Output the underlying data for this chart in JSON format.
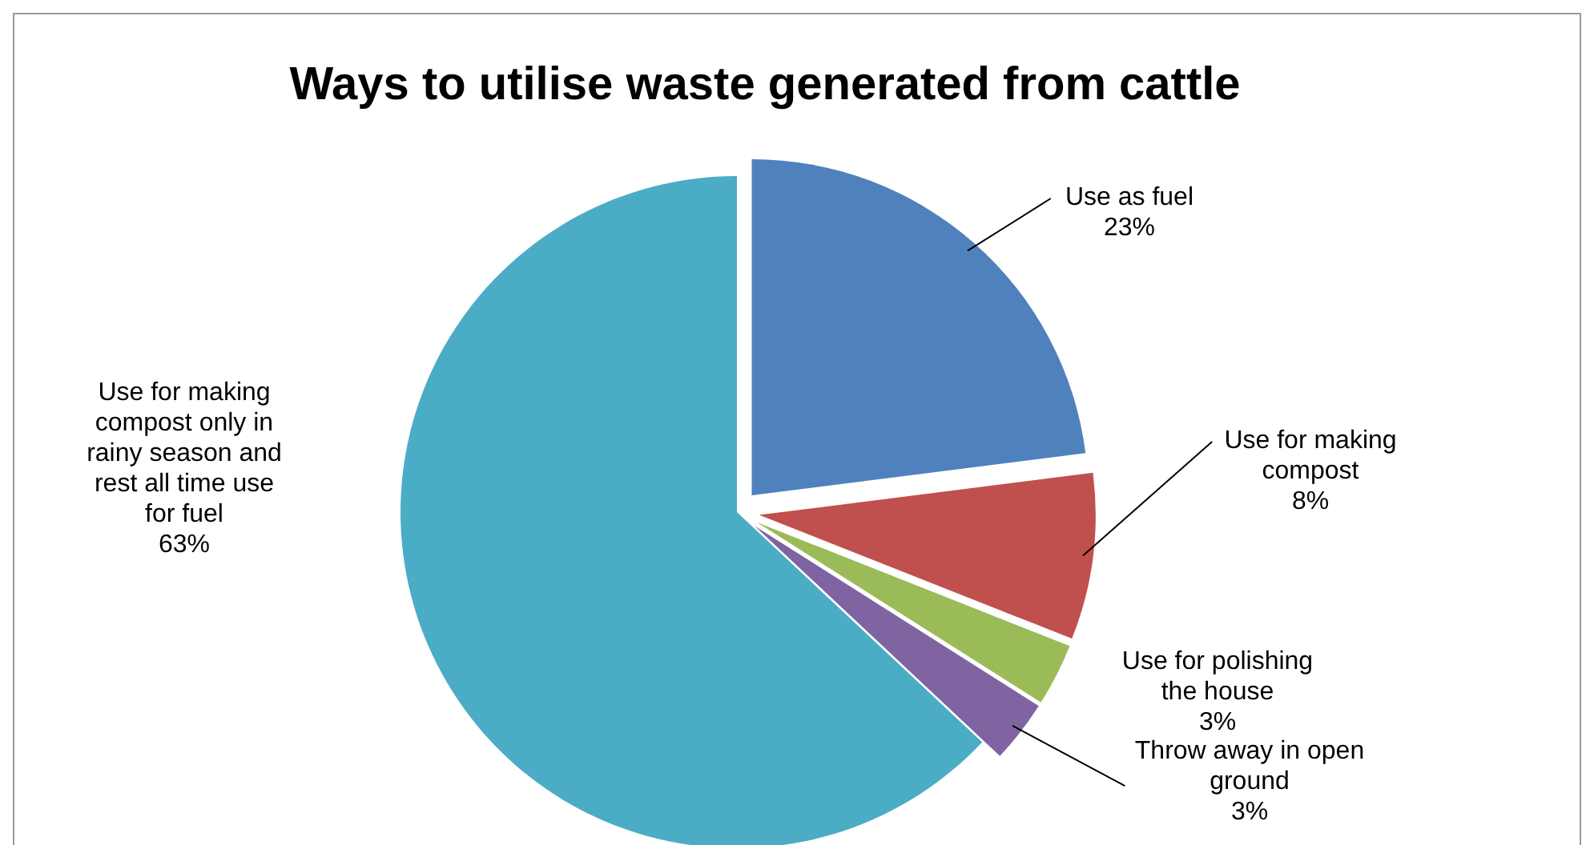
{
  "chart_data": {
    "type": "pie",
    "title": "Ways to utilise waste generated from cattle",
    "categories": [
      "Use as fuel",
      "Use for making compost",
      "Use for polishing the house",
      "Throw away in open ground",
      "Use for making compost only in rainy season and rest all time use for fuel"
    ],
    "values": [
      23,
      8,
      3,
      3,
      63
    ],
    "colors": [
      "#4f81bd",
      "#c0504d",
      "#9bbb59",
      "#8064a2",
      "#4bacc6"
    ],
    "value_labels": [
      "23%",
      "8%",
      "3%",
      "3%",
      "63%"
    ]
  }
}
